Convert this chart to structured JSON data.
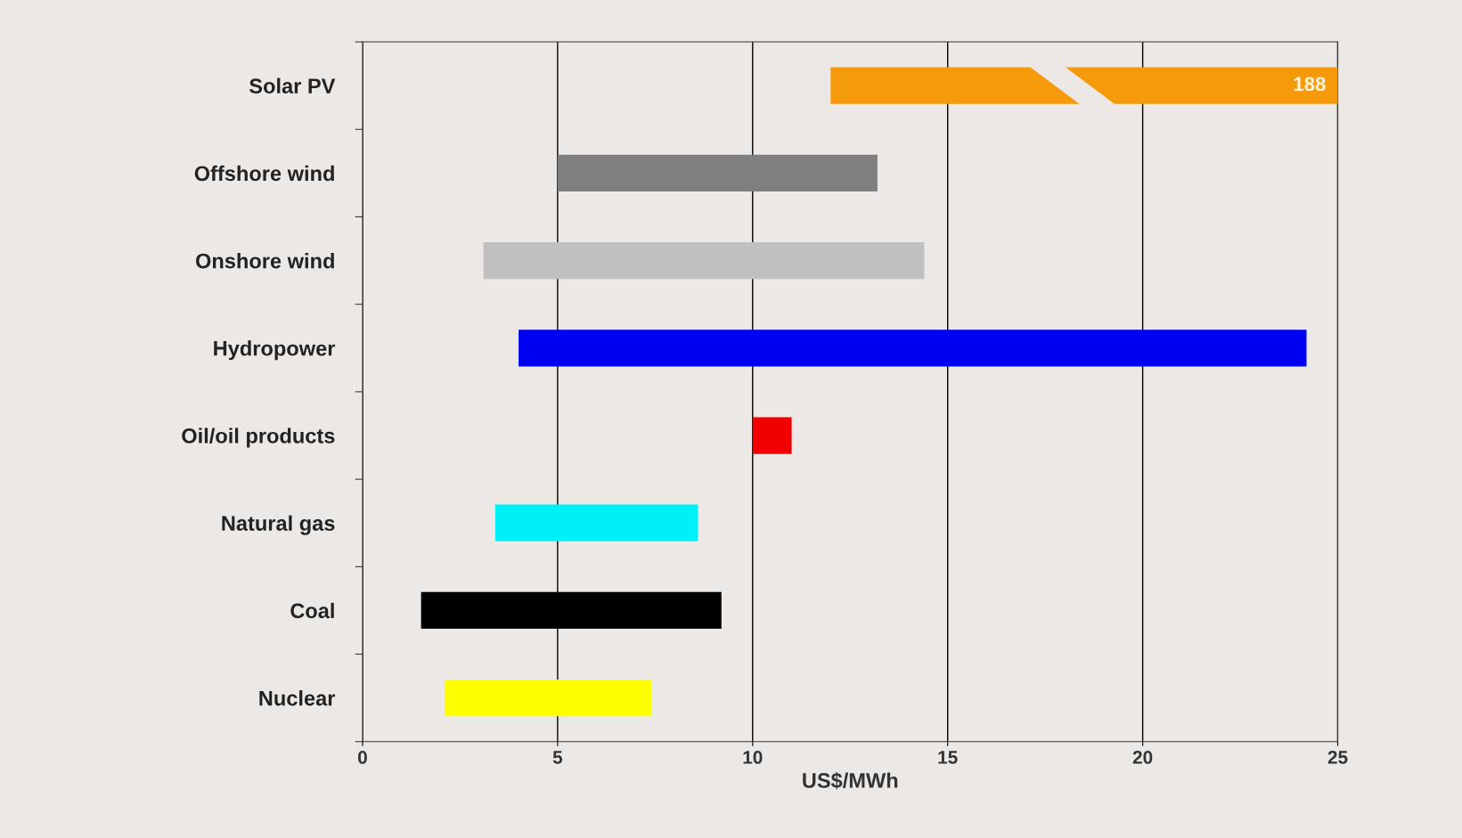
{
  "chart_data": {
    "type": "bar",
    "orientation": "horizontal",
    "xlabel": "US$/MWh",
    "categories": [
      "Solar PV",
      "Offshore wind",
      "Onshore wind",
      "Hydropower",
      "Oil/oil products",
      "Natural gas",
      "Coal",
      "Nuclear"
    ],
    "base": [
      12,
      5,
      3.1,
      4,
      10,
      3.4,
      1.5,
      2.1
    ],
    "values": [
      176,
      8.2,
      11.3,
      20.2,
      1,
      5.2,
      7.7,
      5.3
    ],
    "colors": [
      "#f59a0a",
      "#7f7f7f",
      "#c0c0c0",
      "#0000f0",
      "#f00000",
      "#00f0f8",
      "#000000",
      "#ffff00"
    ],
    "value_labels": [
      "188",
      null,
      null,
      null,
      null,
      null,
      null,
      null
    ],
    "xlim": [
      0,
      25
    ],
    "xticks": [
      0,
      5,
      10,
      15,
      20,
      25
    ],
    "grid": "x"
  }
}
